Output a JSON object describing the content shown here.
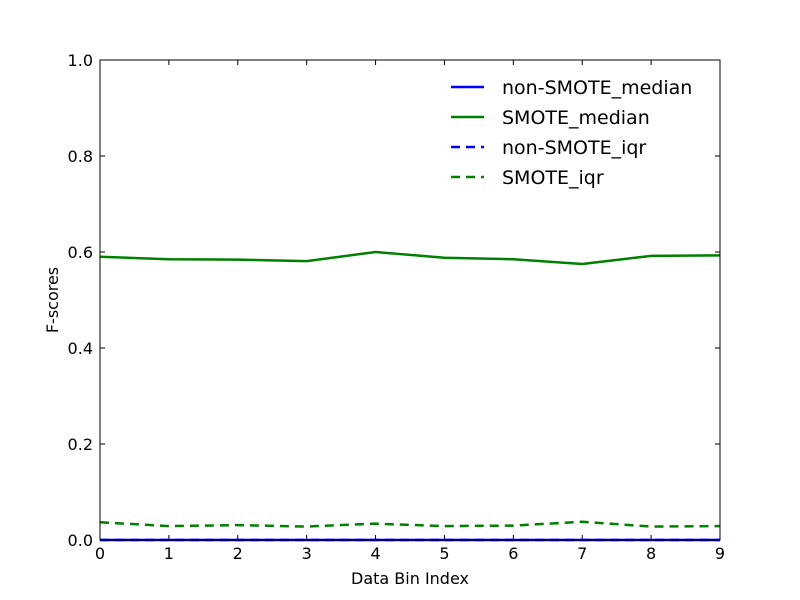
{
  "chart_data": {
    "type": "line",
    "title": "",
    "xlabel": "Data Bin Index",
    "ylabel": "F-scores",
    "xlim": [
      0,
      9
    ],
    "ylim": [
      0,
      1.0
    ],
    "x": [
      0,
      1,
      2,
      3,
      4,
      5,
      6,
      7,
      8,
      9
    ],
    "xticks": [
      "0",
      "1",
      "2",
      "3",
      "4",
      "5",
      "6",
      "7",
      "8",
      "9"
    ],
    "yticks": [
      "0.0",
      "0.2",
      "0.4",
      "0.6",
      "0.8",
      "1.0"
    ],
    "grid": false,
    "legend_position": "top-right",
    "series": [
      {
        "name": "non-SMOTE_median",
        "color": "#0000ff",
        "dash": "solid",
        "values": [
          0,
          0,
          0,
          0,
          0,
          0,
          0,
          0,
          0,
          0
        ]
      },
      {
        "name": "SMOTE_median",
        "color": "#008000",
        "dash": "solid",
        "values": [
          0.59,
          0.585,
          0.584,
          0.581,
          0.6,
          0.588,
          0.585,
          0.575,
          0.592,
          0.593
        ]
      },
      {
        "name": "non-SMOTE_iqr",
        "color": "#0000ff",
        "dash": "dashed",
        "values": [
          0,
          0,
          0,
          0,
          0,
          0,
          0,
          0,
          0,
          0
        ]
      },
      {
        "name": "SMOTE_iqr",
        "color": "#008000",
        "dash": "dashed",
        "values": [
          0.037,
          0.029,
          0.031,
          0.028,
          0.034,
          0.029,
          0.03,
          0.038,
          0.028,
          0.029
        ]
      }
    ]
  }
}
